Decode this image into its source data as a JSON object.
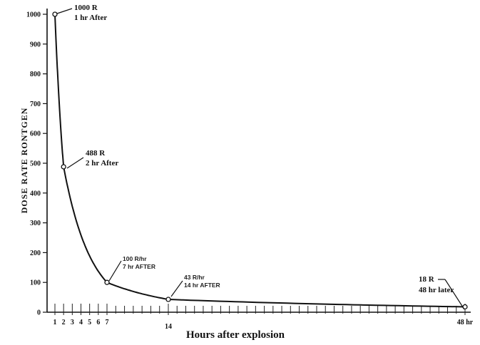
{
  "chart_data": {
    "type": "line",
    "title": "",
    "xlabel": "Hours after explosion",
    "ylabel": "DOSE RATE RONTGEN",
    "ylim": [
      0,
      1000
    ],
    "grid": false,
    "x_tick_labels": [
      "1",
      "2",
      "3",
      "4",
      "5",
      "6",
      "7",
      "14",
      "48 hr"
    ],
    "y_tick_labels": [
      "0",
      "100",
      "200",
      "300",
      "400",
      "500",
      "600",
      "700",
      "800",
      "900",
      "1000"
    ],
    "series": [
      {
        "points": [
          {
            "x": 1,
            "y": 1000
          },
          {
            "x": 2,
            "y": 488
          },
          {
            "x": 7,
            "y": 100
          },
          {
            "x": 14,
            "y": 43
          },
          {
            "x": 48,
            "y": 18
          }
        ]
      }
    ],
    "annotations": [
      {
        "lines": [
          "1000 R",
          "1 hr After"
        ]
      },
      {
        "lines": [
          "488 R",
          "2 hr After"
        ]
      },
      {
        "lines": [
          "100 R/hr",
          "7 hr AFTER"
        ]
      },
      {
        "lines": [
          "43 R/hr",
          "14 hr AFTER"
        ]
      },
      {
        "lines": [
          "18 R",
          "48 hr later"
        ]
      }
    ]
  }
}
